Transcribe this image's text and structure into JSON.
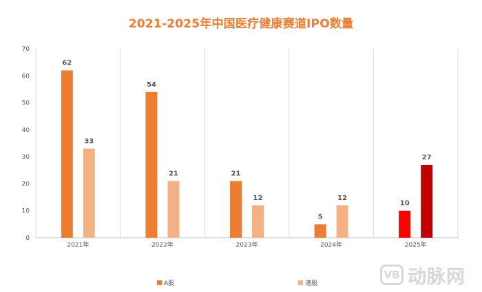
{
  "chart_data": {
    "type": "bar",
    "title": "2021-2025年中国医疗健康赛道IPO数量",
    "categories": [
      "2021年",
      "2022年",
      "2023年",
      "2024年",
      "2025年"
    ],
    "series": [
      {
        "name": "A股",
        "values": [
          62,
          54,
          21,
          5,
          10
        ],
        "color": "#ED7D31",
        "highlight_color": "#FF0000"
      },
      {
        "name": "港股",
        "values": [
          33,
          21,
          12,
          12,
          27
        ],
        "color": "#F4B183",
        "highlight_color": "#C00000"
      }
    ],
    "highlight_category_index": 4,
    "ylim": [
      0,
      70
    ],
    "yticks": [
      0,
      10,
      20,
      30,
      40,
      50,
      60,
      70
    ],
    "xlabel": "",
    "ylabel": "",
    "grid": "vertical category separators",
    "legend_position": "bottom"
  },
  "watermark": {
    "logo": "VB",
    "text": "动脉网"
  }
}
